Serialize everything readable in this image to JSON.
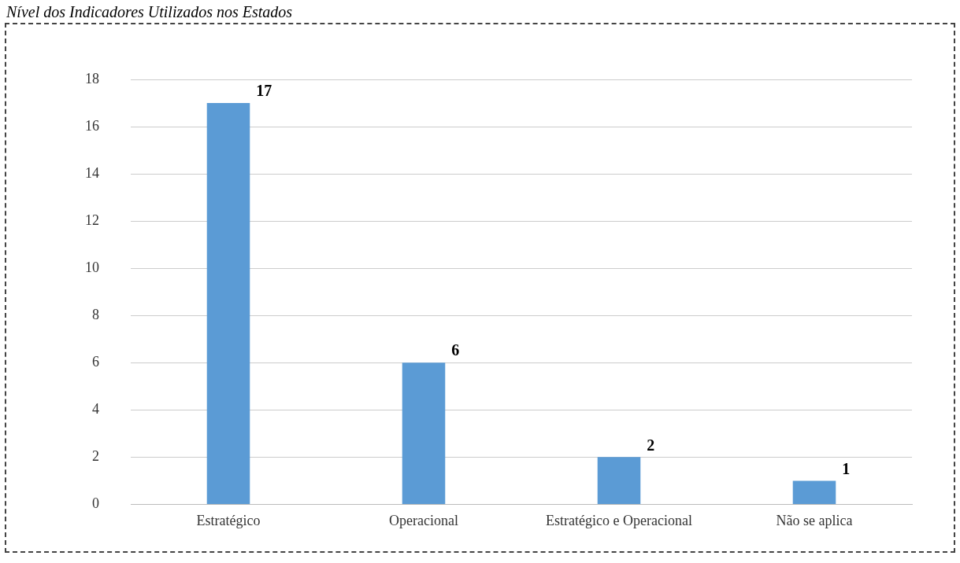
{
  "chart_data": {
    "type": "bar",
    "title": "Nível dos Indicadores Utilizados nos Estados",
    "categories": [
      "Estratégico",
      "Operacional",
      "Estratégico e Operacional",
      "Não se aplica"
    ],
    "values": [
      17,
      6,
      2,
      1
    ],
    "color": "#5b9bd5",
    "ylim": [
      0,
      18
    ],
    "yticks": [
      0,
      2,
      4,
      6,
      8,
      10,
      12,
      14,
      16,
      18
    ],
    "grid": "y",
    "data_labels": true
  }
}
